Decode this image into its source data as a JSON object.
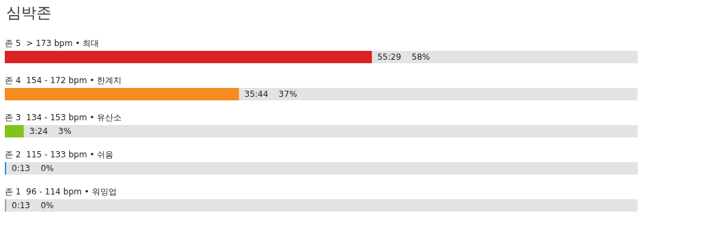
{
  "chart_data": {
    "type": "bar",
    "orientation": "horizontal",
    "stacked": true,
    "title": "심박존",
    "categories": [
      "존 5  > 173 bpm • 최대",
      "존 4  154 - 172 bpm • 한계치",
      "존 3  134 - 153 bpm • 유산소",
      "존 2  115 - 133 bpm • 쉬움",
      "존 1  96 - 114 bpm • 워밍업"
    ],
    "series": [
      {
        "values": [
          58,
          37,
          3,
          0,
          0
        ],
        "colors": [
          "#d92323",
          "#f68b1f",
          "#7fc31c",
          "#2a8fd8",
          "#a0a0a0"
        ],
        "value_labels": [
          "55:29    58%",
          "35:44    37%",
          "3:24    3%",
          "0:13    0%",
          "0:13    0%"
        ]
      },
      {
        "values": [
          42,
          63,
          97,
          100,
          100
        ],
        "color": "#e3e3e3"
      }
    ],
    "xlim": [
      0,
      100
    ]
  }
}
